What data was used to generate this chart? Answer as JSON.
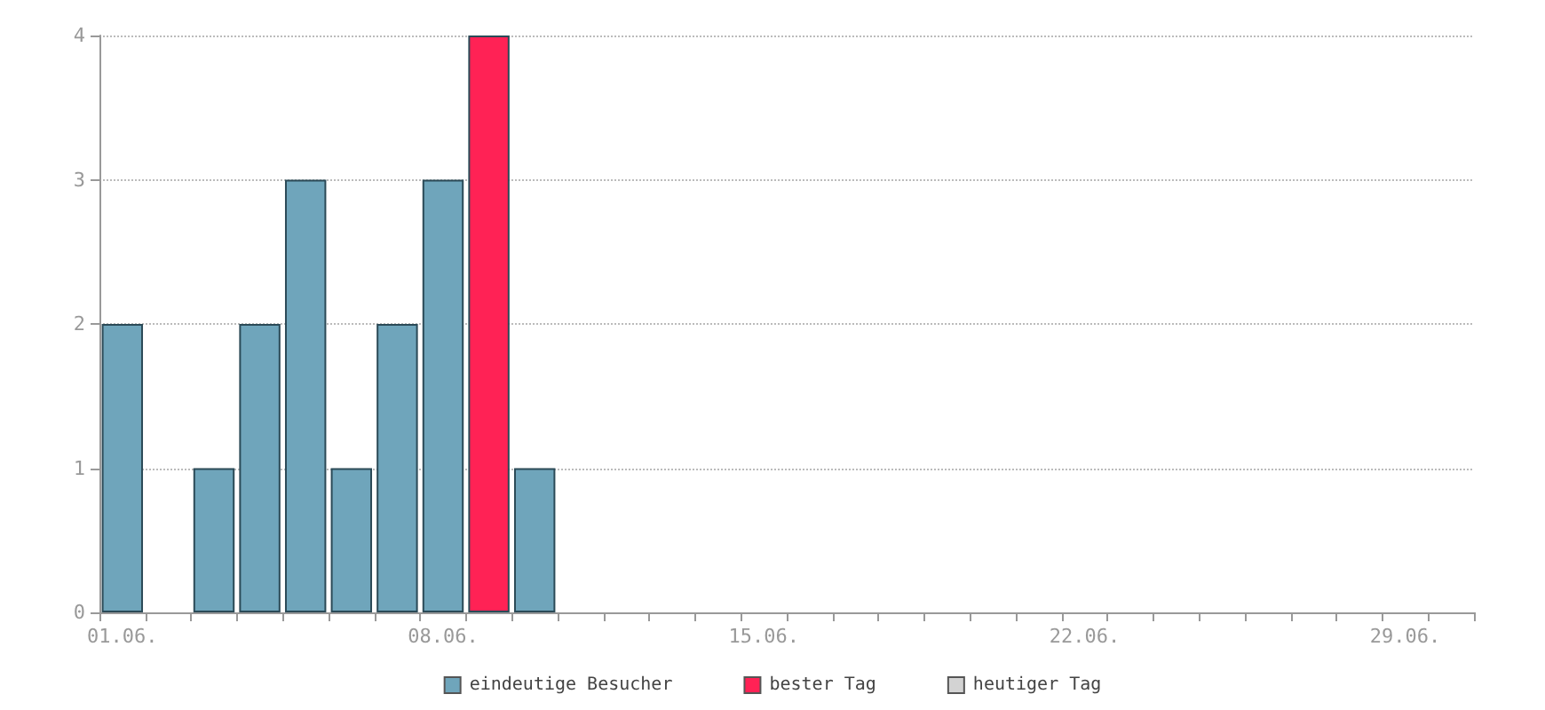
{
  "chart_data": {
    "type": "bar",
    "stacked": true,
    "categories": [
      "01.06.",
      null,
      null,
      null,
      null,
      null,
      null,
      "08.06.",
      null,
      null,
      null,
      null,
      null,
      null,
      "15.06.",
      null,
      null,
      null,
      null,
      null,
      null,
      "22.06.",
      null,
      null,
      null,
      null,
      null,
      null,
      "29.06.",
      null
    ],
    "series": [
      {
        "name": "eindeutige Besucher",
        "color": "#6fa5bb",
        "values": [
          2,
          0,
          1,
          2,
          3,
          1,
          2,
          3,
          null,
          1,
          0,
          0,
          0,
          0,
          0,
          0,
          0,
          0,
          0,
          0,
          0,
          0,
          0,
          0,
          0,
          0,
          0,
          0,
          0,
          0
        ]
      },
      {
        "name": "bester Tag",
        "color": "#ff2255",
        "values": [
          null,
          null,
          null,
          null,
          null,
          null,
          null,
          null,
          4,
          null,
          null,
          null,
          null,
          null,
          null,
          null,
          null,
          null,
          null,
          null,
          null,
          null,
          null,
          null,
          null,
          null,
          null,
          null,
          null,
          null
        ]
      },
      {
        "name": "heutiger Tag",
        "color": "#d3d3d3",
        "values": [
          null,
          null,
          null,
          null,
          null,
          null,
          null,
          null,
          null,
          null,
          null,
          null,
          null,
          null,
          null,
          null,
          null,
          null,
          null,
          null,
          null,
          null,
          null,
          null,
          null,
          null,
          null,
          null,
          null,
          null
        ]
      }
    ],
    "ylim": [
      0,
      4
    ],
    "yticks": [
      0,
      1,
      2,
      3,
      4
    ],
    "grid": "y",
    "legend": "bottom"
  }
}
